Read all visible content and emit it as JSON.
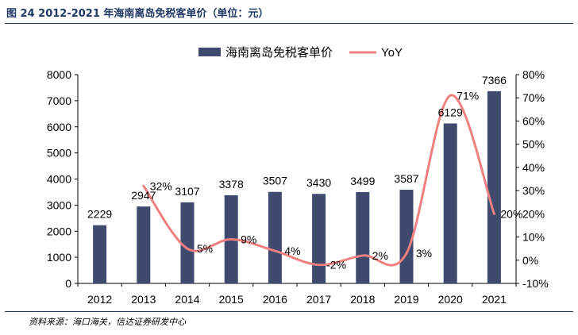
{
  "figure": {
    "title": "图 24  2012-2021 年海南离岛免税客单价（单位：元）",
    "source": "资料来源：海口海关，信达证券研发中心"
  },
  "chart_data": {
    "type": "bar",
    "categories": [
      "2012",
      "2013",
      "2014",
      "2015",
      "2016",
      "2017",
      "2018",
      "2019",
      "2020",
      "2021"
    ],
    "series": [
      {
        "name": "海南离岛免税客单价",
        "type": "bar",
        "axis": "left",
        "color": "#3f4a6e",
        "values": [
          2229,
          2947,
          3107,
          3378,
          3507,
          3430,
          3499,
          3587,
          6129,
          7366
        ],
        "labels": [
          "2229",
          "2947",
          "3107",
          "3378",
          "3507",
          "3430",
          "3499",
          "3587",
          "6129",
          "7366"
        ]
      },
      {
        "name": "YoY",
        "type": "line",
        "axis": "right",
        "color": "#f08080",
        "values": [
          null,
          32,
          5,
          9,
          4,
          -2,
          2,
          3,
          71,
          20
        ],
        "labels": [
          null,
          "32%",
          "5%",
          "9%",
          "4%",
          "-2%",
          "2%",
          "3%",
          "71%",
          "20%"
        ]
      }
    ],
    "y_left": {
      "min": 0,
      "max": 8000,
      "ticks": [
        "0",
        "1000",
        "2000",
        "3000",
        "4000",
        "5000",
        "6000",
        "7000",
        "8000"
      ]
    },
    "y_right": {
      "min": -10,
      "max": 80,
      "ticks": [
        "-10%",
        "0%",
        "10%",
        "20%",
        "30%",
        "40%",
        "50%",
        "60%",
        "70%",
        "80%"
      ]
    },
    "legend_position": "top-center",
    "grid": false
  }
}
